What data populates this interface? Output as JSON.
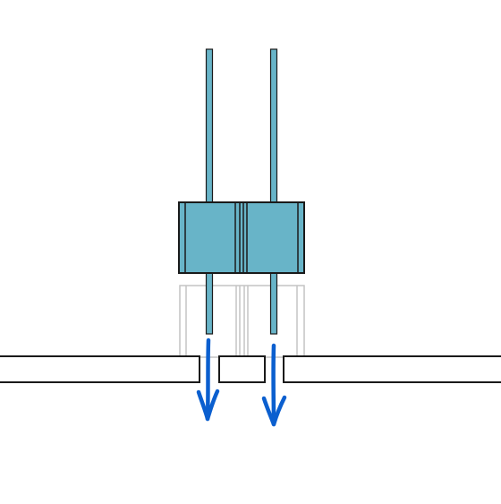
{
  "diagram": {
    "description_labels": [],
    "colors": {
      "background": "#ffffff",
      "component_fill": "#68b4c8",
      "outline": "#1a1a1a",
      "ghost_outline": "#bdbdbd",
      "arrow": "#0b5fcf"
    },
    "parts": {
      "pins": 2,
      "arrows": 2,
      "board_holes": 2
    }
  }
}
